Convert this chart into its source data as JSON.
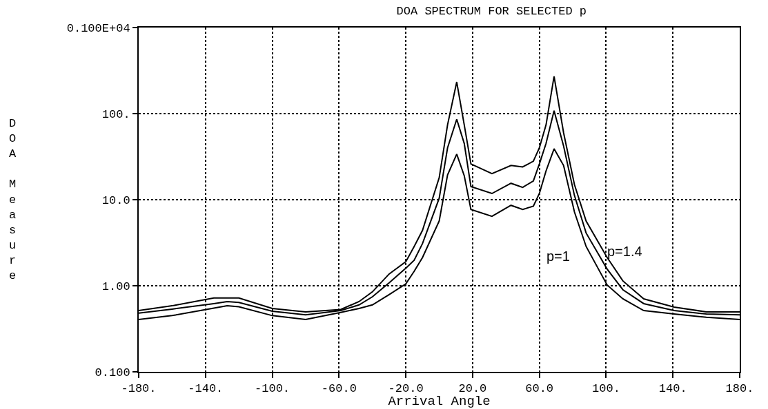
{
  "chart_data": {
    "type": "line",
    "title": "DOA SPECTRUM FOR SELECTED p",
    "xlabel": "Arrival Angle",
    "ylabel": "DOA Measure",
    "x": [
      -180,
      -160,
      -135,
      -127,
      -120,
      -100,
      -80,
      -59,
      -48,
      -40,
      -30,
      -20,
      -15,
      -10,
      0,
      5,
      10.5,
      15,
      19,
      31.6,
      43,
      50,
      56.4,
      60,
      64,
      68.8,
      74.5,
      81,
      88,
      100.6,
      110,
      122.5,
      140.7,
      160,
      180
    ],
    "series": [
      {
        "color": "#000000",
        "values": [
          0.515,
          0.585,
          0.72,
          0.72,
          0.72,
          0.545,
          0.497,
          0.53,
          0.655,
          0.85,
          1.37,
          1.9,
          2.86,
          4.4,
          18,
          74,
          233,
          74,
          26,
          20.1,
          25,
          24,
          28,
          40,
          74,
          271,
          60,
          15,
          5.65,
          2.13,
          1.14,
          0.705,
          0.565,
          0.497,
          0.497
        ]
      },
      {
        "color": "#000000",
        "values": [
          0.48,
          0.535,
          0.62,
          0.655,
          0.64,
          0.505,
          0.46,
          0.515,
          0.6,
          0.745,
          1.08,
          1.6,
          1.98,
          3.1,
          10.4,
          40,
          86,
          45,
          14.2,
          11.8,
          15.5,
          13.9,
          16.5,
          26,
          45,
          108,
          42,
          11.2,
          4.1,
          1.56,
          0.9,
          0.62,
          0.515,
          0.47,
          0.46
        ]
      },
      {
        "color": "#000000",
        "values": [
          0.405,
          0.45,
          0.55,
          0.585,
          0.57,
          0.45,
          0.405,
          0.49,
          0.545,
          0.6,
          0.79,
          1.05,
          1.47,
          2.13,
          5.65,
          19.4,
          33.8,
          19,
          7.7,
          6.4,
          8.6,
          7.7,
          8.4,
          11.8,
          21.6,
          39,
          25,
          7.2,
          2.86,
          1.02,
          0.705,
          0.515,
          0.47,
          0.43,
          0.405
        ]
      }
    ],
    "annotations": [
      "p=1",
      "p=1.4"
    ],
    "xlim": [
      -180,
      180
    ],
    "xticks": [
      {
        "value": -180,
        "label": "-180."
      },
      {
        "value": -140,
        "label": "-140."
      },
      {
        "value": -100,
        "label": "-100."
      },
      {
        "value": -60,
        "label": "-60.0"
      },
      {
        "value": -20,
        "label": "-20.0"
      },
      {
        "value": 20,
        "label": "20.0"
      },
      {
        "value": 60,
        "label": "60.0"
      },
      {
        "value": 100,
        "label": "100."
      },
      {
        "value": 140,
        "label": "140."
      },
      {
        "value": 180,
        "label": "180."
      }
    ],
    "ylim": [
      0.1,
      1000
    ],
    "yticks": [
      {
        "value": 0.1,
        "label": "0.100"
      },
      {
        "value": 1,
        "label": "1.00"
      },
      {
        "value": 10,
        "label": "10.0"
      },
      {
        "value": 100,
        "label": "100."
      },
      {
        "value": 1000,
        "label": "0.100E+04"
      }
    ],
    "log": true,
    "grid": true,
    "marker": "none",
    "line_style": "solid"
  }
}
